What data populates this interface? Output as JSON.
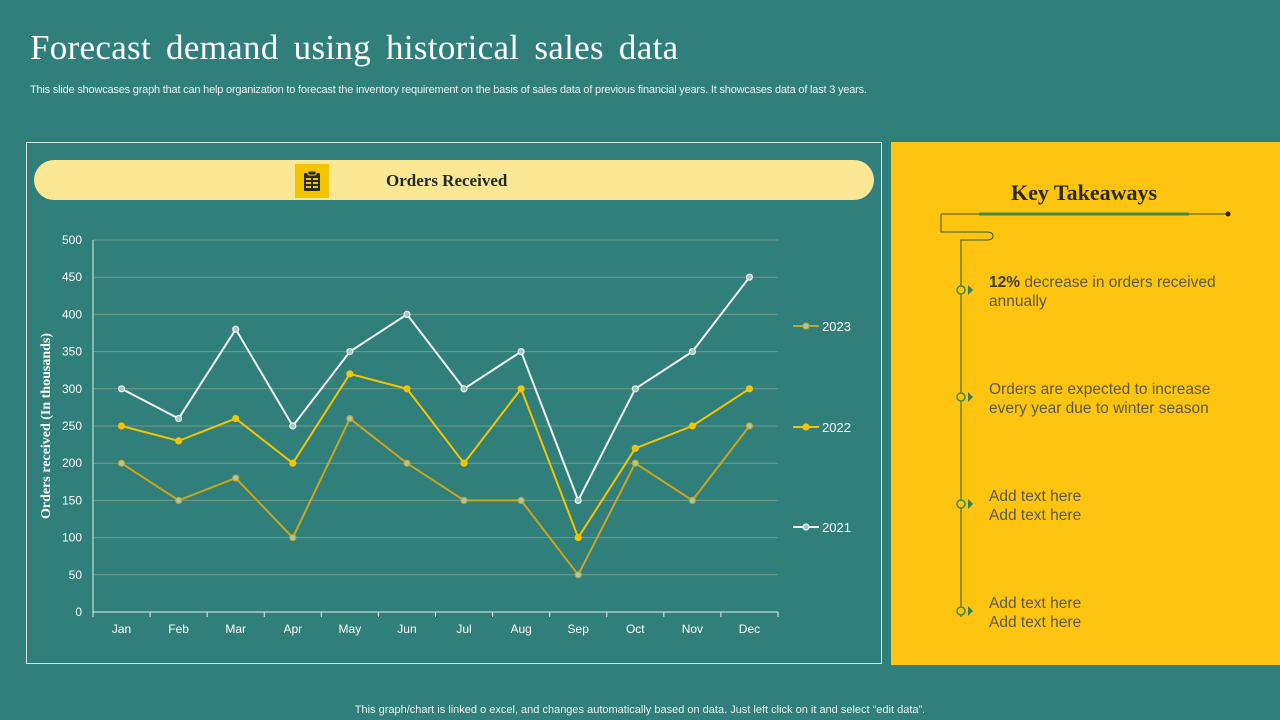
{
  "title": "Forecast demand using historical sales data",
  "subtitle": "This slide showcases graph that can help organization to forecast the inventory requirement on the basis of sales data of previous financial years. It showcases data of last 3 years.",
  "footer": "This graph/chart is linked o excel, and changes automatically based on data. Just left click on it and select “edit data”.",
  "chart_header": {
    "label": "Orders Received",
    "icon": "clipboard-icon"
  },
  "chart_data": {
    "type": "line",
    "title": "Orders Received",
    "xlabel": "",
    "ylabel": "Orders received (In thousands)",
    "ylim": [
      0,
      500
    ],
    "yticks": [
      0,
      50,
      100,
      150,
      200,
      250,
      300,
      350,
      400,
      450,
      500
    ],
    "grid": true,
    "legend_position": "right",
    "categories": [
      "Jan",
      "Feb",
      "Mar",
      "Apr",
      "May",
      "Jun",
      "Jul",
      "Aug",
      "Sep",
      "Oct",
      "Nov",
      "Dec"
    ],
    "series": [
      {
        "name": "2023",
        "color": "#c9a61a",
        "values": [
          200,
          150,
          180,
          100,
          260,
          200,
          150,
          150,
          50,
          200,
          150,
          250
        ]
      },
      {
        "name": "2022",
        "color": "#f5c400",
        "values": [
          250,
          230,
          260,
          200,
          320,
          300,
          200,
          300,
          100,
          220,
          250,
          300
        ]
      },
      {
        "name": "2021",
        "color": "#f2f2f2",
        "values": [
          300,
          260,
          380,
          250,
          350,
          400,
          300,
          350,
          150,
          300,
          350,
          450
        ]
      }
    ]
  },
  "takeaways": {
    "title": "Key Takeaways",
    "items": [
      {
        "bold": "12%",
        "text": " decrease in orders received annually"
      },
      {
        "bold": "",
        "text": "Orders are expected to increase every year due to winter season"
      },
      {
        "bold": "",
        "text": "Add text here Add text here"
      },
      {
        "bold": "",
        "text": "Add text here Add text here"
      }
    ]
  },
  "colors": {
    "background": "#317f7b",
    "accent_yellow": "#fec40f",
    "header_pill": "#fbe794"
  }
}
